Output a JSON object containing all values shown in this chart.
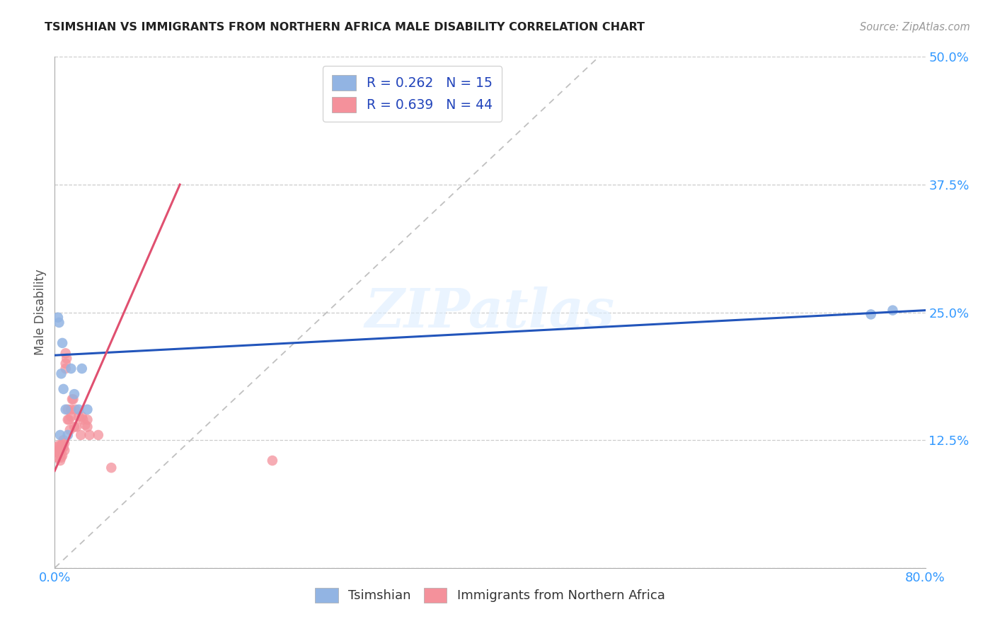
{
  "title": "TSIMSHIAN VS IMMIGRANTS FROM NORTHERN AFRICA MALE DISABILITY CORRELATION CHART",
  "source": "Source: ZipAtlas.com",
  "xlabel": "",
  "ylabel": "Male Disability",
  "xlim": [
    0.0,
    0.8
  ],
  "ylim": [
    0.0,
    0.5
  ],
  "x_ticks": [
    0.0,
    0.2,
    0.4,
    0.6,
    0.8
  ],
  "y_ticks": [
    0.0,
    0.125,
    0.25,
    0.375,
    0.5
  ],
  "watermark": "ZIPatlas",
  "tsimshian_color": "#92b4e3",
  "immigrants_color": "#f4919b",
  "tsimshian_line_color": "#2255bb",
  "immigrants_line_color": "#e05070",
  "diagonal_color": "#c0c0c0",
  "background_color": "#ffffff",
  "tsimshian_x": [
    0.003,
    0.004,
    0.005,
    0.006,
    0.007,
    0.008,
    0.01,
    0.012,
    0.015,
    0.018,
    0.022,
    0.025,
    0.03,
    0.75,
    0.77
  ],
  "tsimshian_y": [
    0.245,
    0.24,
    0.13,
    0.19,
    0.22,
    0.175,
    0.155,
    0.13,
    0.195,
    0.17,
    0.155,
    0.195,
    0.155,
    0.248,
    0.252
  ],
  "immigrants_x": [
    0.002,
    0.003,
    0.003,
    0.004,
    0.004,
    0.005,
    0.005,
    0.005,
    0.006,
    0.006,
    0.006,
    0.007,
    0.007,
    0.007,
    0.008,
    0.008,
    0.009,
    0.009,
    0.01,
    0.01,
    0.01,
    0.011,
    0.012,
    0.012,
    0.013,
    0.014,
    0.015,
    0.015,
    0.016,
    0.017,
    0.018,
    0.019,
    0.02,
    0.022,
    0.024,
    0.025,
    0.026,
    0.028,
    0.03,
    0.03,
    0.032,
    0.04,
    0.052,
    0.2
  ],
  "immigrants_y": [
    0.118,
    0.115,
    0.108,
    0.12,
    0.112,
    0.115,
    0.11,
    0.105,
    0.12,
    0.108,
    0.115,
    0.118,
    0.11,
    0.12,
    0.125,
    0.118,
    0.122,
    0.115,
    0.21,
    0.2,
    0.195,
    0.205,
    0.155,
    0.145,
    0.145,
    0.135,
    0.155,
    0.148,
    0.165,
    0.165,
    0.138,
    0.155,
    0.138,
    0.148,
    0.13,
    0.148,
    0.145,
    0.14,
    0.145,
    0.138,
    0.13,
    0.13,
    0.098,
    0.105
  ],
  "tsimshian_line_x": [
    0.0,
    0.8
  ],
  "tsimshian_line_y": [
    0.208,
    0.252
  ],
  "immigrants_line_x": [
    0.0,
    0.115
  ],
  "immigrants_line_y": [
    0.095,
    0.375
  ]
}
